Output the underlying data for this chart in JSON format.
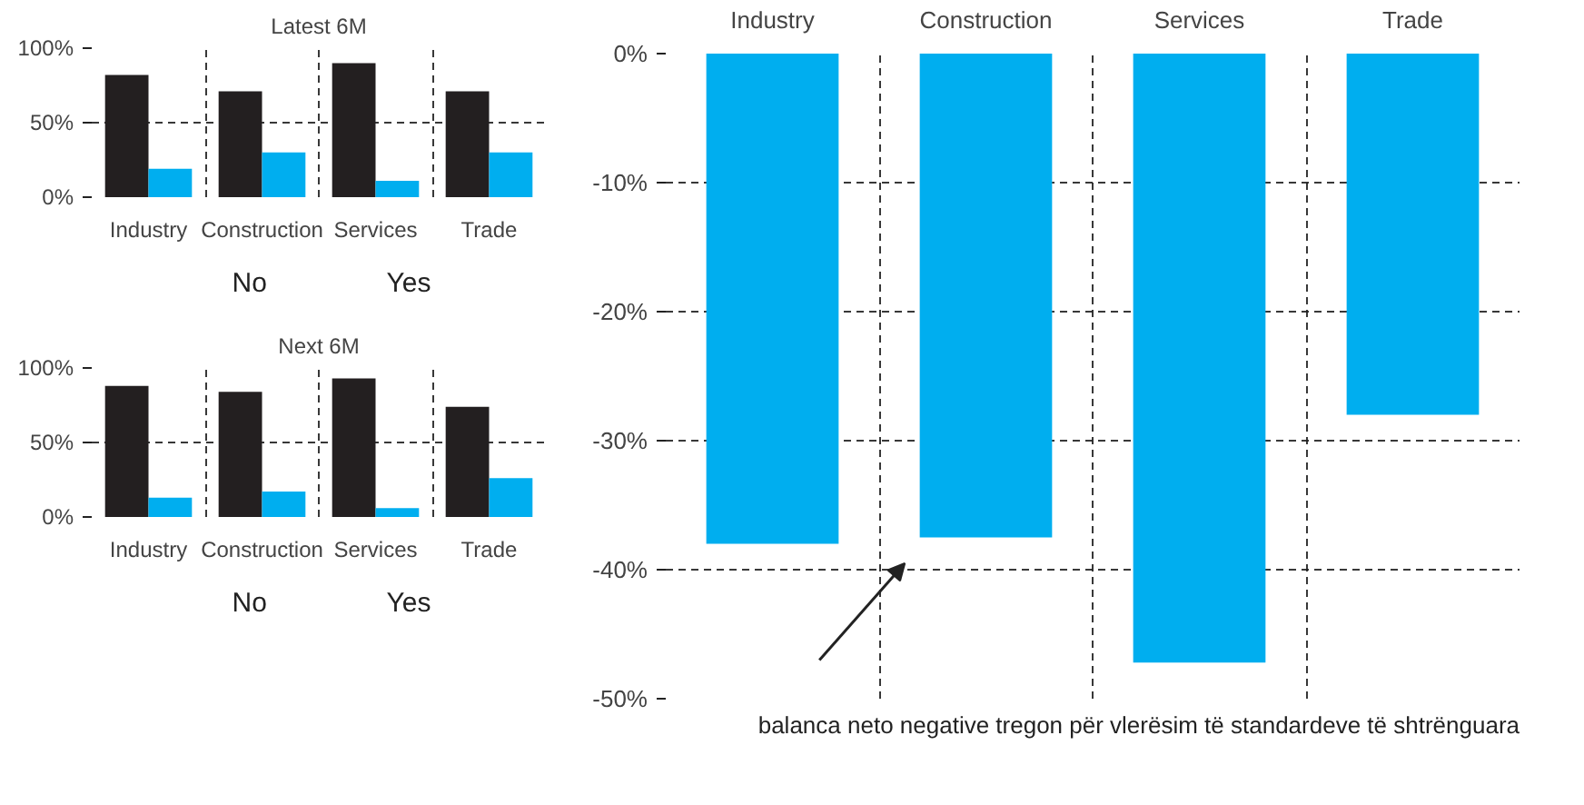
{
  "chart_data": [
    {
      "type": "bar",
      "title": "Latest 6M",
      "categories": [
        "Industry",
        "Construction",
        "Services",
        "Trade"
      ],
      "series": [
        {
          "name": "No",
          "color": "#231f20",
          "values": [
            82,
            71,
            90,
            71
          ]
        },
        {
          "name": "Yes",
          "color": "#00aeef",
          "values": [
            19,
            30,
            11,
            30
          ]
        }
      ],
      "ylim": [
        0,
        100
      ],
      "yticks": [
        {
          "value": 0,
          "label": "0%"
        },
        {
          "value": 50,
          "label": "50%"
        },
        {
          "value": 100,
          "label": "100%"
        }
      ],
      "grid": true,
      "legend": "bottom"
    },
    {
      "type": "bar",
      "title": "Next 6M",
      "categories": [
        "Industry",
        "Construction",
        "Services",
        "Trade"
      ],
      "series": [
        {
          "name": "No",
          "color": "#231f20",
          "values": [
            88,
            84,
            93,
            74
          ]
        },
        {
          "name": "Yes",
          "color": "#00aeef",
          "values": [
            13,
            17,
            6,
            26
          ]
        }
      ],
      "ylim": [
        0,
        100
      ],
      "yticks": [
        {
          "value": 0,
          "label": "0%"
        },
        {
          "value": 50,
          "label": "50%"
        },
        {
          "value": 100,
          "label": "100%"
        }
      ],
      "grid": true,
      "legend": "bottom"
    },
    {
      "type": "bar",
      "categories": [
        "Industry",
        "Construction",
        "Services",
        "Trade"
      ],
      "values": [
        -38,
        -37.5,
        -47.2,
        -28
      ],
      "color": "#00aeef",
      "ylim": [
        -50,
        0
      ],
      "yticks": [
        {
          "value": -50,
          "label": "-50%"
        },
        {
          "value": -40,
          "label": "-40%"
        },
        {
          "value": -30,
          "label": "-30%"
        },
        {
          "value": -20,
          "label": "-20%"
        },
        {
          "value": -10,
          "label": "-10%"
        },
        {
          "value": 0,
          "label": "0%"
        }
      ],
      "grid": true,
      "annotations": [
        "balanca neto negative tregon për vlerësim të standardeve të shtrënguara"
      ]
    }
  ]
}
